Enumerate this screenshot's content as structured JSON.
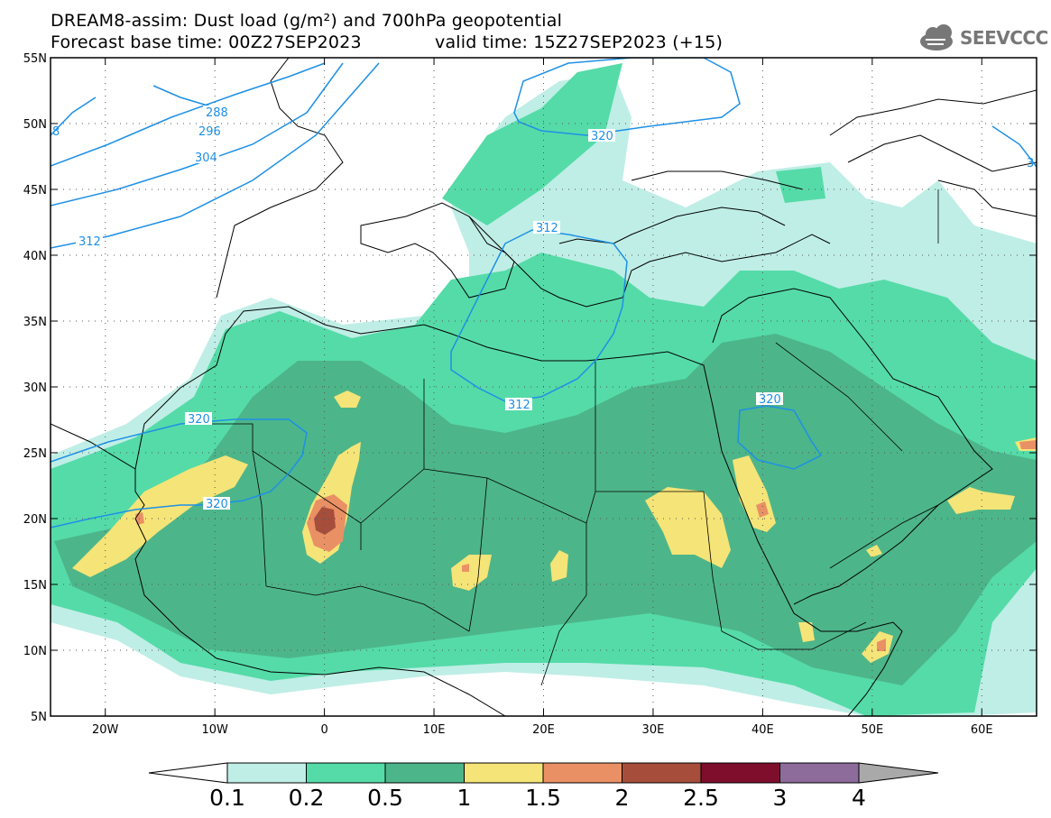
{
  "header": {
    "line1": "DREAM8-assim: Dust load (g/m²) and 700hPa geopotential",
    "line2_left": "Forecast base time: 00Z27SEP2023",
    "line2_right": "valid time: 15Z27SEP2023 (+15)"
  },
  "logo": {
    "text": "SEEVCCC",
    "icon": "cloud-logo-icon"
  },
  "axes": {
    "lat_labels": [
      "55N",
      "50N",
      "45N",
      "40N",
      "35N",
      "30N",
      "25N",
      "20N",
      "15N",
      "10N",
      "5N"
    ],
    "lat_values": [
      55,
      50,
      45,
      40,
      35,
      30,
      25,
      20,
      15,
      10,
      5
    ],
    "lon_labels": [
      "20W",
      "10W",
      "0",
      "10E",
      "20E",
      "30E",
      "40E",
      "50E",
      "60E"
    ],
    "lon_values": [
      -20,
      -10,
      0,
      10,
      20,
      30,
      40,
      50,
      60
    ],
    "lon_range": [
      -25,
      65
    ],
    "lat_range": [
      5,
      55
    ]
  },
  "contours": {
    "labels": [
      "288",
      "296",
      "304",
      "312",
      "312",
      "312",
      "320",
      "320",
      "320",
      "320",
      "3",
      "8"
    ],
    "color": "#1e90e6"
  },
  "colorbar": {
    "labels": [
      "0.1",
      "0.2",
      "0.5",
      "1",
      "1.5",
      "2",
      "2.5",
      "3",
      "4"
    ],
    "colors": [
      "#ffffff",
      "#bfeee6",
      "#55dba8",
      "#4db58a",
      "#f5e477",
      "#ea9065",
      "#a64e3b",
      "#7f0d2c",
      "#8d6b9b",
      "#a9a9a9"
    ]
  }
}
